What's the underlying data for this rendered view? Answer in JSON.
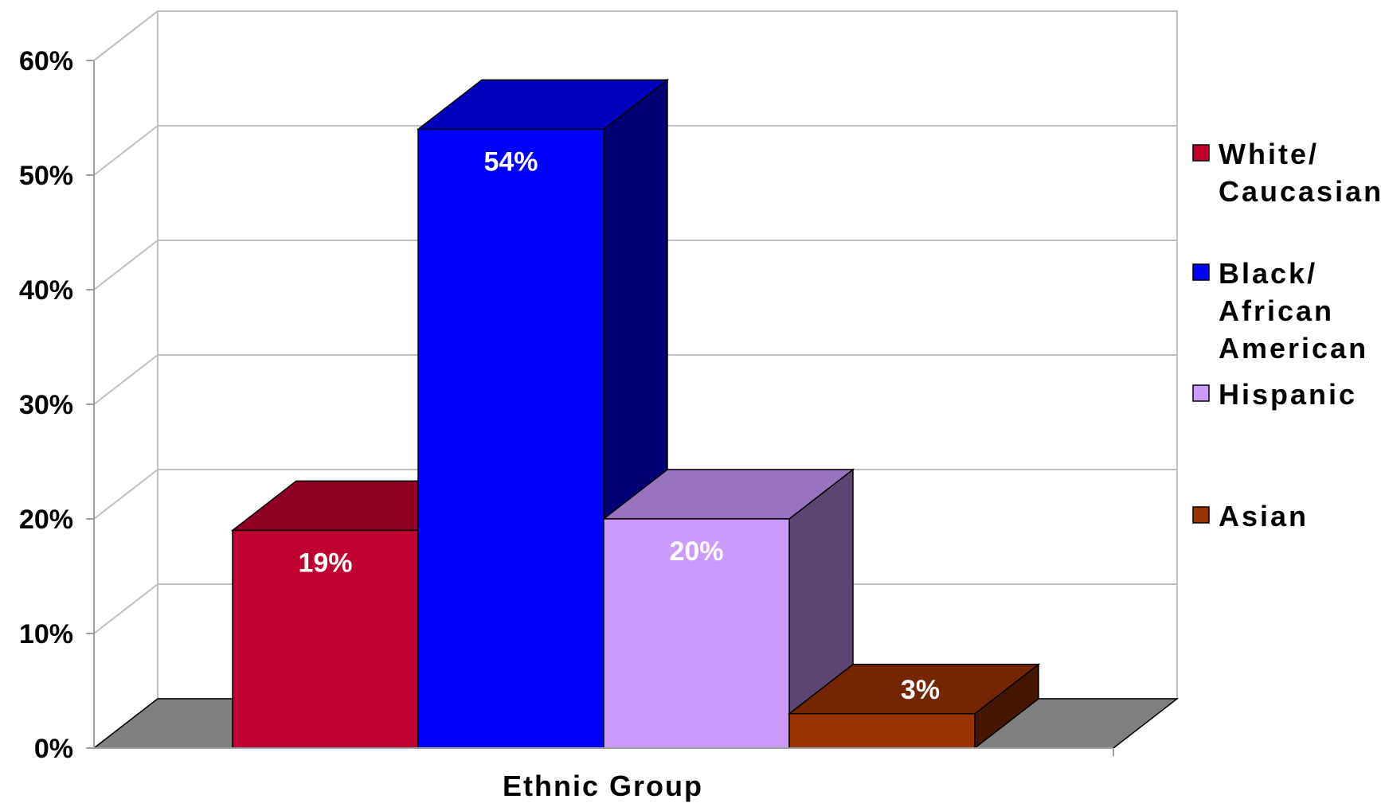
{
  "chart_data": {
    "type": "bar",
    "xlabel": "Ethnic Group",
    "ylabel": "",
    "ylim": [
      0,
      60
    ],
    "yticks": [
      "0%",
      "10%",
      "20%",
      "30%",
      "40%",
      "50%",
      "60%"
    ],
    "grid": true,
    "legend_position": "right",
    "three_d": true,
    "series": [
      {
        "name": "White/ Caucasian",
        "legend_lines": [
          "White/",
          "Caucasian"
        ],
        "value": 19,
        "label": "19%",
        "color": "#c0002e"
      },
      {
        "name": "Black/ African American",
        "legend_lines": [
          "Black/",
          "African",
          "American"
        ],
        "value": 54,
        "label": "54%",
        "color": "#0000ff"
      },
      {
        "name": "Hispanic",
        "legend_lines": [
          "Hispanic"
        ],
        "value": 20,
        "label": "20%",
        "color": "#cc99ff"
      },
      {
        "name": "Asian",
        "legend_lines": [
          "Asian"
        ],
        "value": 3,
        "label": "3%",
        "color": "#993300"
      }
    ]
  }
}
